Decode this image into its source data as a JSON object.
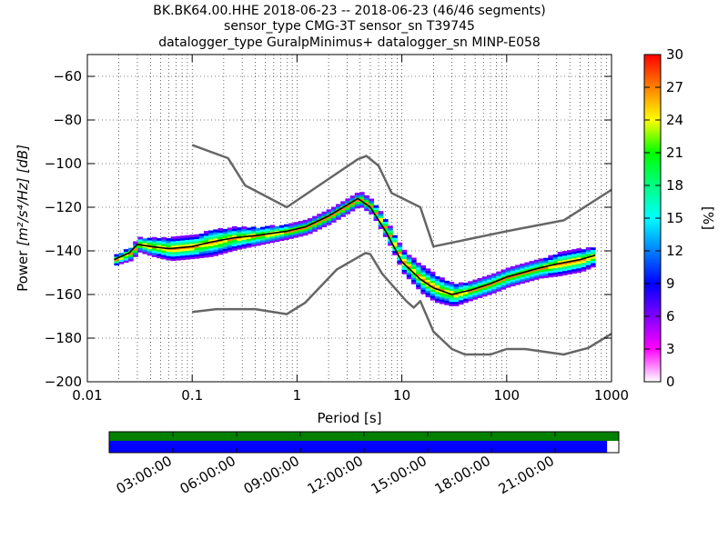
{
  "chart_data": {
    "type": "heatmap",
    "title_lines": [
      "BK.BK64.00.HHE   2018-06-23 -- 2018-06-23  (46/46 segments)",
      "sensor_type CMG-3T sensor_sn T39745",
      "datalogger_type GuralpMinimus+ datalogger_sn MINP-E058"
    ],
    "xlabel": "Period [s]",
    "ylabel_prefix": "Power",
    "ylabel_units": "[m²/s⁴/Hz] [dB]",
    "x_scale": "log",
    "xlim": [
      0.01,
      1000
    ],
    "ylim": [
      -200,
      -50
    ],
    "x_tick_labels": [
      "0.01",
      "0.1",
      "1",
      "10",
      "100",
      "1000"
    ],
    "x_tick_values": [
      0.01,
      0.1,
      1,
      10,
      100,
      1000
    ],
    "y_tick_labels": [
      "−60",
      "−80",
      "−100",
      "−120",
      "−140",
      "−160",
      "−180",
      "−200"
    ],
    "y_tick_values": [
      -60,
      -80,
      -100,
      -120,
      -140,
      -160,
      -180,
      -200
    ],
    "grid": true,
    "colorbar": {
      "label": "[%]",
      "range": [
        0,
        30
      ],
      "tick_labels": [
        "0",
        "3",
        "6",
        "9",
        "12",
        "15",
        "18",
        "21",
        "24",
        "27",
        "30"
      ],
      "tick_values": [
        0,
        3,
        6,
        9,
        12,
        15,
        18,
        21,
        24,
        27,
        30
      ],
      "colors": [
        "#ffffff",
        "#ff00ff",
        "#8000ff",
        "#0000ff",
        "#0080ff",
        "#00ffff",
        "#00ff80",
        "#00ff00",
        "#ffff00",
        "#ff8000",
        "#ff0000"
      ]
    },
    "series": [
      {
        "role": "mean",
        "color": "#000000",
        "points": [
          [
            0.018,
            -144
          ],
          [
            0.025,
            -141
          ],
          [
            0.03,
            -137
          ],
          [
            0.04,
            -138
          ],
          [
            0.06,
            -139
          ],
          [
            0.1,
            -138
          ],
          [
            0.15,
            -136
          ],
          [
            0.25,
            -134
          ],
          [
            0.4,
            -133
          ],
          [
            0.8,
            -131
          ],
          [
            1.2,
            -129
          ],
          [
            2,
            -124
          ],
          [
            3,
            -119
          ],
          [
            3.8,
            -116
          ],
          [
            5,
            -120
          ],
          [
            7,
            -131
          ],
          [
            10,
            -145
          ],
          [
            15,
            -153
          ],
          [
            20,
            -157
          ],
          [
            30,
            -160
          ],
          [
            45,
            -158
          ],
          [
            70,
            -155
          ],
          [
            100,
            -152
          ],
          [
            200,
            -148
          ],
          [
            300,
            -146
          ],
          [
            500,
            -144
          ],
          [
            700,
            -142
          ]
        ]
      },
      {
        "role": "upper-model",
        "color": "#666666",
        "points": [
          [
            0.1,
            -91.5
          ],
          [
            0.22,
            -97.5
          ],
          [
            0.32,
            -110
          ],
          [
            0.8,
            -120
          ],
          [
            3.8,
            -98
          ],
          [
            4.6,
            -96.5
          ],
          [
            6,
            -101
          ],
          [
            8,
            -113.5
          ],
          [
            15,
            -120
          ],
          [
            20,
            -138
          ],
          [
            100,
            -131
          ],
          [
            350,
            -126
          ],
          [
            1000,
            -112
          ]
        ]
      },
      {
        "role": "lower-model",
        "color": "#666666",
        "points": [
          [
            0.1,
            -168
          ],
          [
            0.17,
            -166.7
          ],
          [
            0.4,
            -166.7
          ],
          [
            0.8,
            -169
          ],
          [
            1.2,
            -163.7
          ],
          [
            2.4,
            -148.5
          ],
          [
            3.8,
            -143
          ],
          [
            4.5,
            -141
          ],
          [
            5,
            -141.5
          ],
          [
            6.5,
            -150.5
          ],
          [
            11,
            -163
          ],
          [
            13,
            -166
          ],
          [
            15,
            -163
          ],
          [
            20,
            -177
          ],
          [
            30,
            -185
          ],
          [
            40,
            -187.5
          ],
          [
            70,
            -187.5
          ],
          [
            100,
            -185
          ],
          [
            150,
            -185
          ],
          [
            350,
            -187.5
          ],
          [
            600,
            -184.5
          ],
          [
            1000,
            -178
          ]
        ]
      }
    ],
    "density_band": {
      "points": [
        [
          0.018,
          -144,
          2
        ],
        [
          0.025,
          -141,
          3
        ],
        [
          0.03,
          -137,
          3
        ],
        [
          0.04,
          -138,
          4
        ],
        [
          0.06,
          -139,
          5
        ],
        [
          0.1,
          -138,
          5
        ],
        [
          0.15,
          -136,
          6
        ],
        [
          0.25,
          -134,
          5
        ],
        [
          0.4,
          -133,
          4
        ],
        [
          0.8,
          -131,
          3
        ],
        [
          1.2,
          -129,
          3
        ],
        [
          2,
          -124,
          3
        ],
        [
          3,
          -119,
          3
        ],
        [
          3.8,
          -116,
          3
        ],
        [
          5,
          -120,
          3
        ],
        [
          7,
          -131,
          4
        ],
        [
          10,
          -145,
          5
        ],
        [
          15,
          -153,
          6
        ],
        [
          20,
          -157,
          6
        ],
        [
          30,
          -160,
          5
        ],
        [
          45,
          -158,
          4
        ],
        [
          70,
          -155,
          4
        ],
        [
          100,
          -152,
          4
        ],
        [
          200,
          -148,
          4
        ],
        [
          300,
          -146,
          5
        ],
        [
          500,
          -144,
          5
        ],
        [
          700,
          -142,
          4
        ]
      ]
    },
    "timeline": {
      "tick_labels": [
        "03:00:00",
        "06:00:00",
        "09:00:00",
        "12:00:00",
        "15:00:00",
        "18:00:00",
        "21:00:00"
      ],
      "tick_hours": [
        3,
        6,
        9,
        12,
        15,
        18,
        21
      ],
      "range_hours": [
        0,
        24
      ],
      "top_bar_color": "#008000",
      "bottom_bar_color": "#0000ff",
      "bottom_bar_fraction": 0.977
    }
  }
}
